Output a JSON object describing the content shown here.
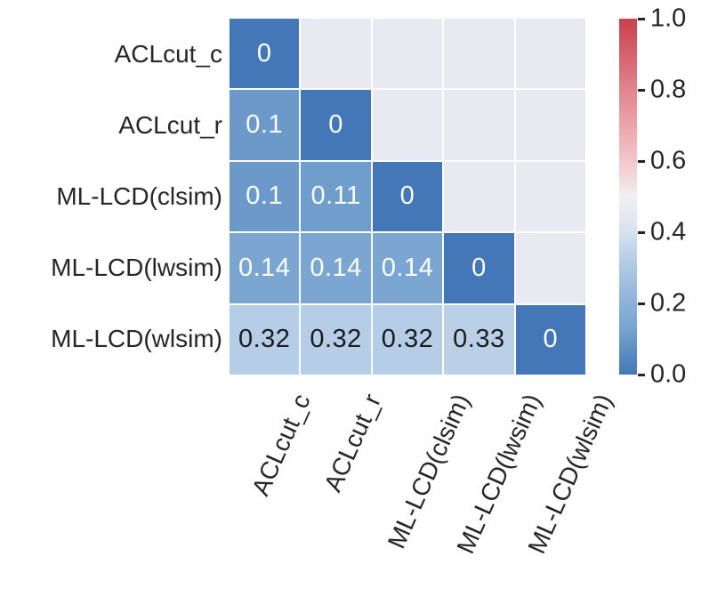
{
  "chart_data": {
    "type": "heatmap",
    "description": "Lower-triangular distance/dissimilarity heatmap between community detection methods",
    "categories": [
      "ACLcut_c",
      "ACLcut_r",
      "ML-LCD(clsim)",
      "ML-LCD(lwsim)",
      "ML-LCD(wlsim)"
    ],
    "matrix": [
      [
        0
      ],
      [
        0.1,
        0
      ],
      [
        0.1,
        0.11,
        0
      ],
      [
        0.14,
        0.14,
        0.14,
        0
      ],
      [
        0.32,
        0.32,
        0.32,
        0.33,
        0
      ]
    ],
    "masked_upper_triangle": true,
    "grid_on": true,
    "colorbar": {
      "min": 0.0,
      "max": 1.0,
      "ticks": [
        1.0,
        0.8,
        0.6,
        0.4,
        0.2,
        0.0
      ],
      "tick_labels": [
        "1.0",
        "0.8",
        "0.6",
        "0.4",
        "0.2",
        "0.0"
      ],
      "position": "right"
    },
    "colormap_stops": [
      {
        "v": 0.0,
        "c": "#4377b7"
      },
      {
        "v": 0.1,
        "c": "#6b9aca"
      },
      {
        "v": 0.14,
        "c": "#7ba6d2"
      },
      {
        "v": 0.2,
        "c": "#8db1d9"
      },
      {
        "v": 0.32,
        "c": "#b5cde6"
      },
      {
        "v": 0.4,
        "c": "#d7e2ef"
      },
      {
        "v": 0.5,
        "c": "#f1f0f1"
      },
      {
        "v": 0.6,
        "c": "#f4c6ca"
      },
      {
        "v": 0.8,
        "c": "#e2848c"
      },
      {
        "v": 1.0,
        "c": "#c8414d"
      }
    ],
    "masked_color": "#e9e9f2",
    "annotation_text_light": "#ffffff",
    "annotation_text_dark": "#1c1c1c",
    "dark_text_threshold": 0.25
  }
}
